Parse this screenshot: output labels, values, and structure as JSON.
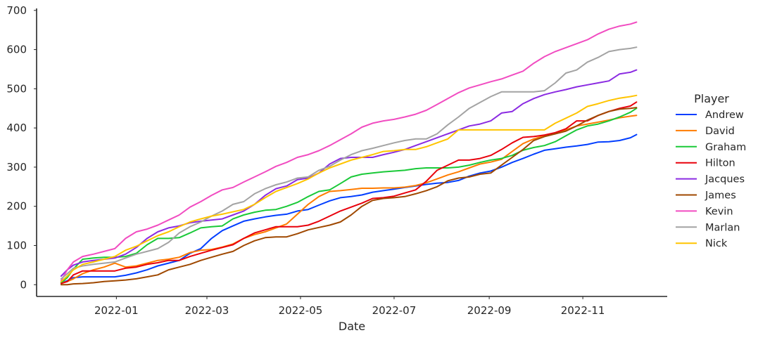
{
  "chart_data": {
    "type": "line",
    "xlabel": "Date",
    "ylabel": "",
    "ylim": [
      -30,
      705
    ],
    "xlim": [
      "2021-11-10",
      "2022-12-26"
    ],
    "x_ticks": [
      {
        "date": "2022-01-01",
        "label": "2022-01"
      },
      {
        "date": "2022-03-01",
        "label": "2022-03"
      },
      {
        "date": "2022-05-01",
        "label": "2022-05"
      },
      {
        "date": "2022-07-01",
        "label": "2022-07"
      },
      {
        "date": "2022-09-01",
        "label": "2022-09"
      },
      {
        "date": "2022-11-01",
        "label": "2022-11"
      }
    ],
    "y_ticks": [
      0,
      100,
      200,
      300,
      400,
      500,
      600,
      700
    ],
    "grid": false,
    "legend": {
      "title": "Player",
      "placement": "right"
    },
    "x": [
      "2021-11-26",
      "2021-11-30",
      "2021-12-04",
      "2021-12-10",
      "2021-12-17",
      "2021-12-24",
      "2021-12-31",
      "2022-01-07",
      "2022-01-14",
      "2022-01-21",
      "2022-01-28",
      "2022-02-04",
      "2022-02-11",
      "2022-02-18",
      "2022-02-25",
      "2022-03-04",
      "2022-03-11",
      "2022-03-18",
      "2022-03-25",
      "2022-04-01",
      "2022-04-08",
      "2022-04-15",
      "2022-04-22",
      "2022-04-29",
      "2022-05-06",
      "2022-05-13",
      "2022-05-20",
      "2022-05-27",
      "2022-06-03",
      "2022-06-10",
      "2022-06-17",
      "2022-06-24",
      "2022-07-01",
      "2022-07-08",
      "2022-07-15",
      "2022-07-22",
      "2022-07-29",
      "2022-08-05",
      "2022-08-12",
      "2022-08-19",
      "2022-08-26",
      "2022-09-02",
      "2022-09-09",
      "2022-09-16",
      "2022-09-23",
      "2022-09-30",
      "2022-10-07",
      "2022-10-14",
      "2022-10-21",
      "2022-10-28",
      "2022-11-04",
      "2022-11-11",
      "2022-11-18",
      "2022-11-25",
      "2022-12-02",
      "2022-12-06"
    ],
    "series": [
      {
        "name": "Andrew",
        "color": "#023eff",
        "values": [
          5,
          10,
          18,
          20,
          20,
          20,
          20,
          24,
          30,
          38,
          48,
          55,
          62,
          80,
          92,
          118,
          138,
          150,
          162,
          168,
          173,
          177,
          180,
          188,
          192,
          203,
          214,
          222,
          225,
          229,
          236,
          240,
          244,
          248,
          252,
          256,
          259,
          261,
          266,
          277,
          285,
          290,
          300,
          312,
          322,
          333,
          343,
          347,
          351,
          354,
          358,
          364,
          365,
          368,
          375,
          383
        ]
      },
      {
        "name": "David",
        "color": "#ff7c00",
        "values": [
          5,
          8,
          15,
          28,
          38,
          45,
          55,
          45,
          48,
          55,
          62,
          65,
          70,
          82,
          88,
          90,
          96,
          104,
          118,
          128,
          135,
          145,
          155,
          180,
          205,
          225,
          238,
          240,
          243,
          246,
          246,
          247,
          247,
          249,
          253,
          260,
          270,
          280,
          288,
          298,
          308,
          313,
          320,
          340,
          360,
          372,
          380,
          385,
          395,
          405,
          410,
          415,
          420,
          426,
          430,
          432
        ]
      },
      {
        "name": "Graham",
        "color": "#1ac938",
        "values": [
          5,
          18,
          40,
          65,
          68,
          70,
          70,
          72,
          80,
          102,
          118,
          118,
          120,
          132,
          145,
          148,
          150,
          168,
          178,
          185,
          190,
          192,
          200,
          210,
          225,
          238,
          242,
          258,
          275,
          282,
          285,
          288,
          290,
          292,
          296,
          298,
          298,
          298,
          300,
          305,
          312,
          318,
          322,
          330,
          343,
          350,
          355,
          365,
          380,
          395,
          405,
          410,
          418,
          428,
          440,
          450
        ]
      },
      {
        "name": "Hilton",
        "color": "#e8000b",
        "values": [
          3,
          8,
          25,
          35,
          35,
          35,
          35,
          42,
          45,
          52,
          56,
          62,
          62,
          72,
          80,
          88,
          95,
          102,
          118,
          132,
          140,
          148,
          148,
          148,
          152,
          162,
          175,
          188,
          198,
          208,
          220,
          222,
          226,
          234,
          242,
          264,
          292,
          305,
          318,
          318,
          322,
          330,
          345,
          362,
          376,
          378,
          382,
          388,
          398,
          418,
          418,
          432,
          442,
          450,
          456,
          466
        ]
      },
      {
        "name": "Jacques",
        "color": "#8b2be2",
        "values": [
          22,
          38,
          50,
          58,
          62,
          65,
          68,
          78,
          95,
          118,
          135,
          145,
          150,
          158,
          162,
          165,
          168,
          178,
          188,
          205,
          228,
          245,
          252,
          268,
          272,
          285,
          308,
          322,
          325,
          325,
          325,
          332,
          338,
          345,
          355,
          365,
          375,
          385,
          395,
          405,
          410,
          418,
          438,
          442,
          462,
          475,
          485,
          492,
          498,
          505,
          510,
          515,
          520,
          538,
          542,
          548
        ]
      },
      {
        "name": "James",
        "color": "#9f4800",
        "values": [
          0,
          0,
          2,
          3,
          5,
          8,
          10,
          12,
          15,
          20,
          25,
          38,
          45,
          52,
          62,
          70,
          78,
          85,
          100,
          112,
          120,
          122,
          122,
          130,
          140,
          146,
          152,
          160,
          178,
          200,
          215,
          220,
          222,
          225,
          232,
          240,
          250,
          265,
          272,
          275,
          282,
          285,
          305,
          325,
          345,
          368,
          378,
          385,
          392,
          405,
          420,
          432,
          442,
          448,
          450,
          452
        ]
      },
      {
        "name": "Kevin",
        "color": "#f14cc1",
        "values": [
          10,
          38,
          58,
          72,
          78,
          85,
          92,
          118,
          135,
          142,
          152,
          165,
          178,
          198,
          212,
          228,
          242,
          248,
          262,
          275,
          288,
          302,
          312,
          325,
          332,
          342,
          355,
          370,
          385,
          402,
          412,
          418,
          422,
          428,
          435,
          445,
          460,
          475,
          490,
          502,
          510,
          518,
          525,
          535,
          545,
          565,
          582,
          595,
          605,
          615,
          625,
          640,
          652,
          660,
          665,
          670
        ]
      },
      {
        "name": "Marlan",
        "color": "#a3a3a3",
        "values": [
          15,
          28,
          42,
          48,
          52,
          55,
          58,
          68,
          78,
          85,
          92,
          108,
          132,
          148,
          160,
          175,
          188,
          205,
          212,
          232,
          245,
          255,
          262,
          272,
          275,
          292,
          302,
          318,
          332,
          342,
          348,
          355,
          362,
          368,
          372,
          372,
          385,
          408,
          428,
          450,
          465,
          480,
          492,
          492,
          492,
          492,
          495,
          515,
          540,
          548,
          568,
          580,
          595,
          600,
          603,
          606
        ]
      },
      {
        "name": "Nick",
        "color": "#ffc400",
        "values": [
          8,
          22,
          38,
          52,
          58,
          65,
          72,
          88,
          98,
          112,
          125,
          135,
          148,
          160,
          168,
          175,
          180,
          186,
          192,
          205,
          222,
          238,
          248,
          258,
          270,
          285,
          298,
          308,
          318,
          325,
          332,
          340,
          342,
          345,
          345,
          352,
          362,
          372,
          395,
          395,
          395,
          395,
          395,
          395,
          395,
          395,
          395,
          412,
          425,
          438,
          455,
          462,
          470,
          476,
          480,
          483
        ]
      }
    ]
  }
}
